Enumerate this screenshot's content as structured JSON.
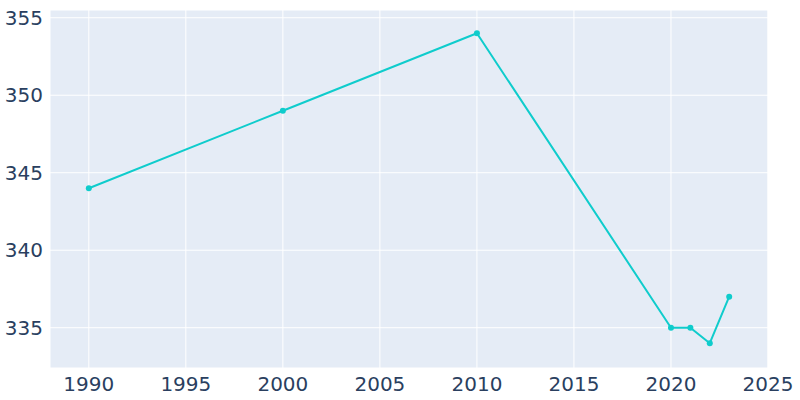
{
  "chart_data": {
    "type": "line",
    "x": [
      1990,
      2000,
      2010,
      2020,
      2021,
      2022,
      2023
    ],
    "values": [
      344,
      349,
      354,
      335,
      335,
      334,
      337
    ],
    "color": "#0fcccc",
    "marker": "circle",
    "xlim": [
      1988,
      2025
    ],
    "xticks": [
      1990,
      1995,
      2000,
      2005,
      2010,
      2015,
      2020,
      2025
    ],
    "ylim": [
      332.4,
      355.5
    ],
    "yticks": [
      335,
      340,
      345,
      350,
      355
    ],
    "grid": true
  }
}
